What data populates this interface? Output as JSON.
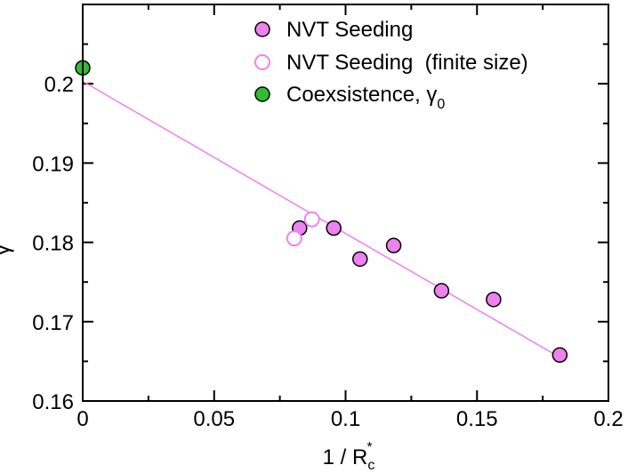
{
  "chart_data": {
    "type": "scatter",
    "title": "",
    "xlabel": "1 / R",
    "xlabel_sub": "c",
    "xlabel_sup": "*",
    "ylabel": "γ",
    "ylabel_sup": "*",
    "xlim": [
      0,
      0.2
    ],
    "ylim": [
      0.16,
      0.21
    ],
    "xticks": [
      0,
      0.05,
      0.1,
      0.15,
      0.2
    ],
    "xtick_labels": [
      "0",
      "0.05",
      "0.1",
      "0.15",
      "0.2"
    ],
    "yticks": [
      0.16,
      0.17,
      0.18,
      0.19,
      0.2
    ],
    "ytick_labels": [
      "0.16",
      "0.17",
      "0.18",
      "0.19",
      "0.2"
    ],
    "legend_position": "top-right",
    "series": [
      {
        "name": "NVT Seeding",
        "marker": "filled-circle",
        "fill": "#ee82ee",
        "x": [
          0.0825,
          0.0955,
          0.1055,
          0.1183,
          0.1365,
          0.1563,
          0.1815
        ],
        "y": [
          0.1818,
          0.1818,
          0.1779,
          0.1796,
          0.1739,
          0.1728,
          0.1658
        ]
      },
      {
        "name": "NVT Seeding  (finite size)",
        "marker": "open-circle",
        "stroke": "#ee82ee",
        "x": [
          0.0805,
          0.0872
        ],
        "y": [
          0.1805,
          0.1829
        ]
      },
      {
        "name": "Coexsistence, γ",
        "name_sub": "0",
        "marker": "filled-circle",
        "fill": "#33bb33",
        "x": [
          0
        ],
        "y": [
          0.202
        ]
      }
    ],
    "fit_line": {
      "color": "#ee82ee",
      "x": [
        0,
        0.1815
      ],
      "y": [
        0.2003,
        0.1655
      ]
    }
  }
}
